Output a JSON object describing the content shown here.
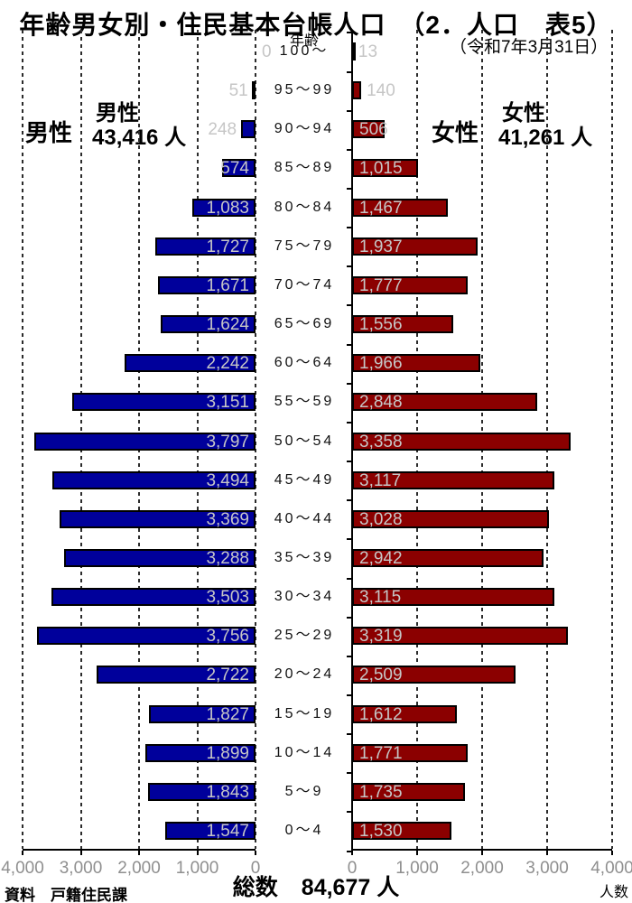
{
  "title": "年齢男女別・住民基本台帳人口　（2．人口　表5）",
  "date_note": "（令和7年3月31日）",
  "age_axis_title": "年齢",
  "male": {
    "axis_label": "男性",
    "summary_name": "男性",
    "summary_value": "43,416 人",
    "total": 43416,
    "bar_color": "#00009b"
  },
  "female": {
    "axis_label": "女性",
    "summary_name": "女性",
    "summary_value": "41,261 人",
    "total": 41261,
    "bar_color": "#8b0000"
  },
  "footer": {
    "source": "資料　戸籍住民課",
    "total_label": "総数",
    "total_value": "84,677 人",
    "unit_label": "人数"
  },
  "chart_data": {
    "type": "bar",
    "subtype": "population-pyramid",
    "title": "年齢男女別・住民基本台帳人口",
    "xlabel": "人数",
    "ylabel": "年齢",
    "axis_range_per_side": [
      0,
      4000
    ],
    "grid": true,
    "categories": [
      "100～",
      "95～99",
      "90～94",
      "85～89",
      "80～84",
      "75～79",
      "70～74",
      "65～69",
      "60～64",
      "55～59",
      "50～54",
      "45～49",
      "40～44",
      "35～39",
      "30～34",
      "25～29",
      "20～24",
      "15～19",
      "10～14",
      "5～9",
      "0～4"
    ],
    "series": [
      {
        "name": "男性",
        "side": "left",
        "color": "#00009b",
        "values": [
          0,
          51,
          248,
          574,
          1083,
          1727,
          1671,
          1624,
          2242,
          3151,
          3797,
          3494,
          3369,
          3288,
          3503,
          3756,
          2722,
          1827,
          1899,
          1843,
          1547
        ],
        "values_formatted": [
          "0",
          "51",
          "248",
          "574",
          "1,083",
          "1,727",
          "1,671",
          "1,624",
          "2,242",
          "3,151",
          "3,797",
          "3,494",
          "3,369",
          "3,288",
          "3,503",
          "3,756",
          "2,722",
          "1,827",
          "1,899",
          "1,843",
          "1,547"
        ]
      },
      {
        "name": "女性",
        "side": "right",
        "color": "#8b0000",
        "values": [
          13,
          140,
          506,
          1015,
          1467,
          1937,
          1777,
          1556,
          1966,
          2848,
          3358,
          3117,
          3028,
          2942,
          3115,
          3319,
          2509,
          1612,
          1771,
          1735,
          1530
        ],
        "values_formatted": [
          "13",
          "140",
          "506",
          "1,015",
          "1,467",
          "1,937",
          "1,777",
          "1,556",
          "1,966",
          "2,848",
          "3,358",
          "3,117",
          "3,028",
          "2,942",
          "3,115",
          "3,319",
          "2,509",
          "1,612",
          "1,771",
          "1,735",
          "1,530"
        ]
      }
    ],
    "x_ticks_left": [
      "4,000",
      "3,000",
      "2,000",
      "1,000",
      "0"
    ],
    "x_ticks_right": [
      "0",
      "1,000",
      "2,000",
      "3,000",
      "4,000"
    ]
  }
}
